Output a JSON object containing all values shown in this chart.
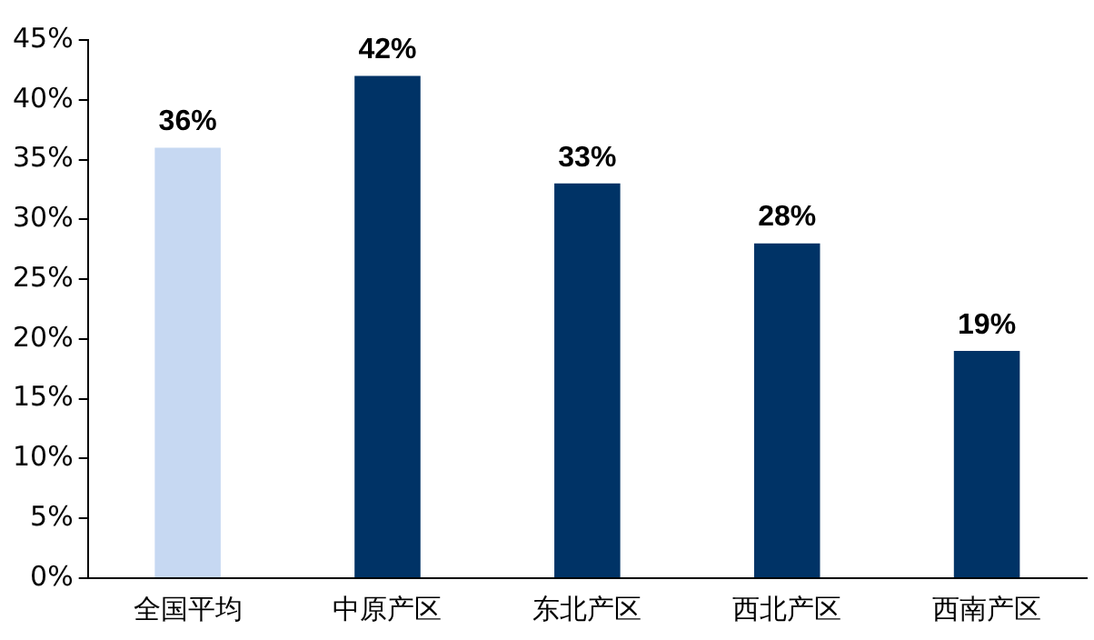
{
  "chart_data": {
    "type": "bar",
    "categories": [
      "全国平均",
      "中原产区",
      "东北产区",
      "西北产区",
      "西南产区"
    ],
    "values": [
      36,
      42,
      33,
      28,
      19
    ],
    "colors": [
      "#c6d8f2",
      "#003366",
      "#003366",
      "#003366",
      "#003366"
    ],
    "value_labels": [
      "36%",
      "42%",
      "33%",
      "28%",
      "19%"
    ],
    "ylim": [
      0,
      45
    ],
    "yticks": [
      {
        "value": 0,
        "label": "0%"
      },
      {
        "value": 5,
        "label": "5%"
      },
      {
        "value": 10,
        "label": "10%"
      },
      {
        "value": 15,
        "label": "15%"
      },
      {
        "value": 20,
        "label": "20%"
      },
      {
        "value": 25,
        "label": "25%"
      },
      {
        "value": 30,
        "label": "30%"
      },
      {
        "value": 35,
        "label": "35%"
      },
      {
        "value": 40,
        "label": "40%"
      },
      {
        "value": 45,
        "label": "45%"
      }
    ],
    "grid": false,
    "legend": false
  }
}
